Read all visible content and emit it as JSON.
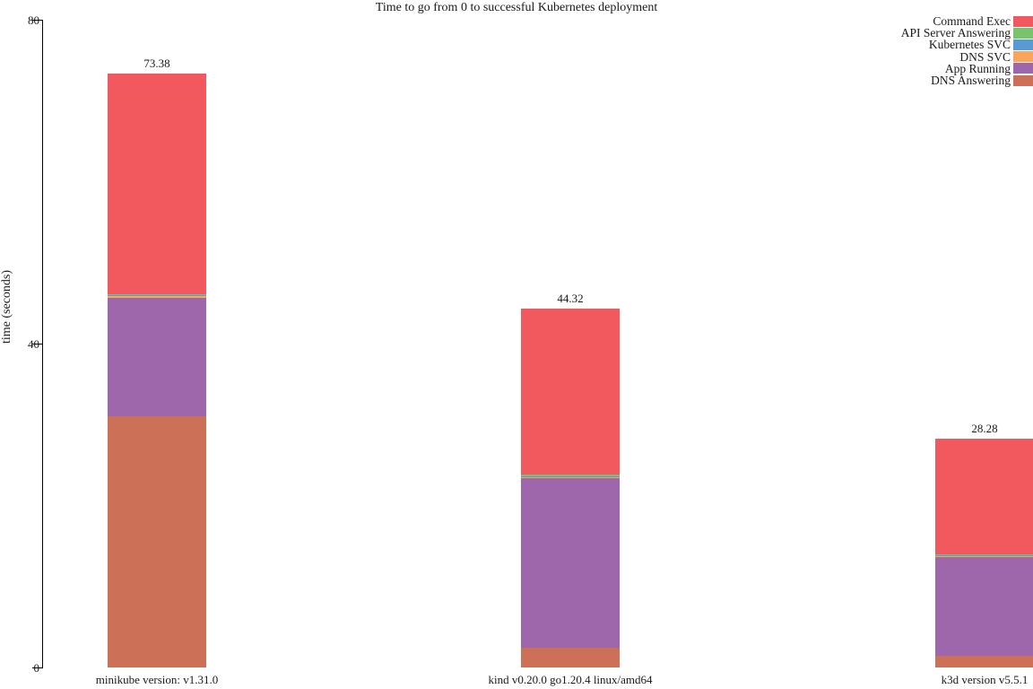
{
  "chart_data": {
    "type": "bar",
    "variant": "stacked-vertical",
    "title": "Time to go from 0 to successful Kubernetes deployment",
    "xlabel": "",
    "ylabel": "time (seconds)",
    "ylim": [
      0,
      80
    ],
    "yticks": [
      {
        "value": 0,
        "label": "0"
      },
      {
        "value": 40,
        "label": "40"
      },
      {
        "value": 80,
        "label": "80"
      }
    ],
    "grid": false,
    "legend_position": "top-right",
    "categories": [
      "minikube version: v1.31.0",
      "kind v0.20.0 go1.20.4 linux/amd64",
      "k3d version v5.5.1"
    ],
    "total_labels": [
      "73.38",
      "44.32",
      "28.28"
    ],
    "totals": [
      73.38,
      44.32,
      28.28
    ],
    "stack_order_note": "series listed bottom-to-top; legend displays top-to-bottom reversed",
    "series": [
      {
        "name": "DNS Answering",
        "color": "#cd7058",
        "values": [
          31.0,
          2.4,
          1.4
        ]
      },
      {
        "name": "App Running",
        "color": "#9e66ab",
        "values": [
          14.7,
          21.0,
          12.2
        ]
      },
      {
        "name": "DNS SVC",
        "color": "#f9a65a",
        "values": [
          0.15,
          0.15,
          0.15
        ]
      },
      {
        "name": "Kubernetes SVC",
        "color": "#599ad3",
        "values": [
          0.1,
          0.1,
          0.1
        ]
      },
      {
        "name": "API Server Answering",
        "color": "#79c36a",
        "values": [
          0.15,
          0.15,
          0.15
        ]
      },
      {
        "name": "Command Exec",
        "color": "#f1595f",
        "values": [
          27.28,
          20.52,
          14.28
        ]
      }
    ],
    "colors": {
      "command_exec": "#f1595f",
      "api_server_answering": "#79c36a",
      "kubernetes_svc": "#599ad3",
      "dns_svc": "#f9a65a",
      "app_running": "#9e66ab",
      "dns_answering": "#cd7058",
      "axis": "#000000",
      "text": "#1a1a1a",
      "background": "#ffffff"
    }
  }
}
